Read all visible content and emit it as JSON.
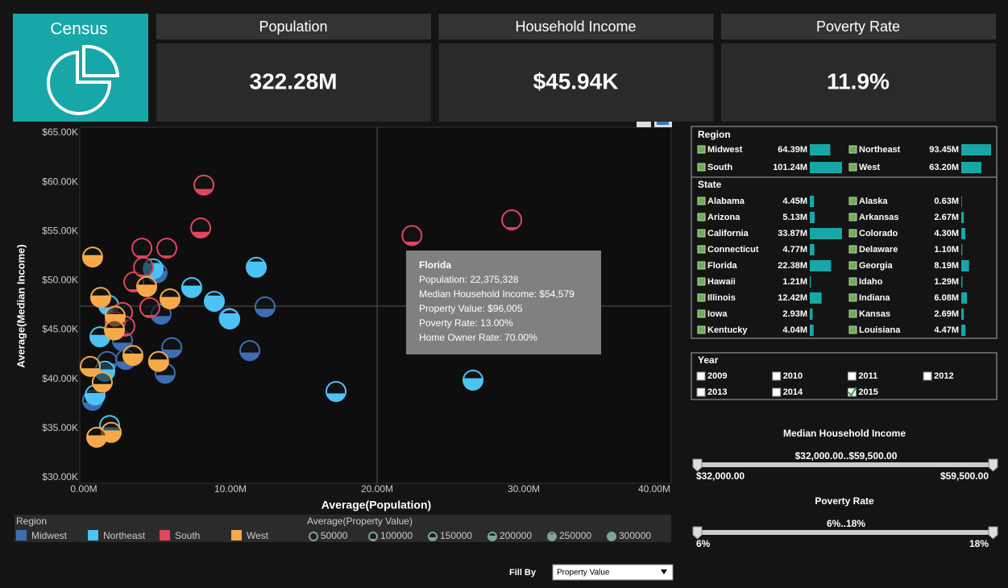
{
  "header": {
    "logo": "Census"
  },
  "kpis": [
    {
      "title": "Population",
      "value": "322.28M"
    },
    {
      "title": "Household Income",
      "value": "$45.94K"
    },
    {
      "title": "Poverty Rate",
      "value": "11.9%"
    }
  ],
  "chart_data": {
    "type": "scatter",
    "x_label": "Average(Population)",
    "y_label": "Average(Median Income)",
    "xlim": [
      0,
      40000000
    ],
    "ylim": [
      30000,
      65000
    ],
    "xticks": [
      {
        "value": 0,
        "label": "0.00M"
      },
      {
        "value": 10000000,
        "label": "10.00M"
      },
      {
        "value": 20000000,
        "label": "20.00M"
      },
      {
        "value": 30000000,
        "label": "30.00M"
      },
      {
        "value": 40000000,
        "label": "40.00M"
      }
    ],
    "yticks": [
      {
        "value": 30000,
        "label": "$30.00K"
      },
      {
        "value": 35000,
        "label": "$35.00K"
      },
      {
        "value": 40000,
        "label": "$40.00K"
      },
      {
        "value": 45000,
        "label": "$45.00K"
      },
      {
        "value": 50000,
        "label": "$50.00K"
      },
      {
        "value": 55000,
        "label": "$55.00K"
      },
      {
        "value": 60000,
        "label": "$60.00K"
      },
      {
        "value": 65000,
        "label": "$65.00K"
      }
    ],
    "legend_title": "Region",
    "fill_title": "Average(Property Value)",
    "fill_legend": [
      50000,
      100000,
      150000,
      200000,
      250000,
      300000
    ],
    "series": [
      {
        "name": "Midwest",
        "color": "#3d6eb4",
        "x": [
          12360000,
          11320000,
          6000000,
          5550000,
          5270000,
          5000000,
          2640000,
          1600000,
          2860000,
          600000,
          9900000
        ],
        "values": [
          47340,
          42900,
          43200,
          40600,
          46600,
          50800,
          43900,
          41800,
          42000,
          37850,
          46200
        ],
        "fill_values": [
          150000,
          150000,
          150000,
          150000,
          150000,
          200000,
          150000,
          150000,
          150000,
          150000,
          150000
        ]
      },
      {
        "name": "Northeast",
        "color": "#4cc3f5",
        "x": [
          11760000,
          7360000,
          8900000,
          4730000,
          9950000,
          26540000,
          17200000,
          1700000,
          1100000,
          1430000,
          770000,
          1760000
        ],
        "values": [
          51350,
          49300,
          47900,
          51200,
          46100,
          39900,
          38750,
          47500,
          44300,
          40800,
          38400,
          35300
        ],
        "fill_values": [
          250000,
          200000,
          250000,
          250000,
          250000,
          200000,
          150000,
          150000,
          200000,
          200000,
          200000,
          150000
        ]
      },
      {
        "name": "South",
        "color": "#e0465e",
        "x": [
          8190000,
          7970000,
          22375328,
          29180000,
          3960000,
          5660000,
          3410000,
          4070000,
          4500000,
          2640000,
          2800000,
          2140000
        ],
        "values": [
          59700,
          55350,
          54579,
          56170,
          53300,
          53300,
          49870,
          51350,
          47260,
          46770,
          45380,
          45800
        ],
        "fill_values": [
          125000,
          125000,
          96005,
          80000,
          80000,
          80000,
          80000,
          80000,
          80000,
          80000,
          80000,
          80000
        ]
      },
      {
        "name": "West",
        "color": "#f7a94a",
        "x": [
          600000,
          1150000,
          4290000,
          5880000,
          2140000,
          2090000,
          3350000,
          5100000,
          440000,
          1260000,
          1870000,
          880000
        ],
        "values": [
          52400,
          48300,
          49400,
          48150,
          46400,
          45000,
          42400,
          41800,
          41300,
          39700,
          34600,
          34100
        ],
        "fill_values": [
          200000,
          200000,
          200000,
          200000,
          200000,
          200000,
          200000,
          200000,
          150000,
          150000,
          200000,
          200000
        ]
      }
    ],
    "tooltip": {
      "title": "Florida",
      "lines": [
        "Population: 22,375,328",
        "Median Household Income: $54,579",
        "Property Value: $96,005",
        "Poverty Rate: 13.00%",
        "Home Owner Rate: 70.00%"
      ]
    }
  },
  "filters": {
    "region": {
      "title": "Region",
      "items": [
        {
          "name": "Midwest",
          "value": 64390000,
          "label": "64.39M"
        },
        {
          "name": "Northeast",
          "value": 93450000,
          "label": "93.45M"
        },
        {
          "name": "South",
          "value": 101240000,
          "label": "101.24M"
        },
        {
          "name": "West",
          "value": 63200000,
          "label": "63.20M"
        }
      ]
    },
    "state": {
      "title": "State",
      "items": [
        {
          "name": "Alabama",
          "value": 4450000,
          "label": "4.45M"
        },
        {
          "name": "Alaska",
          "value": 630000,
          "label": "0.63M"
        },
        {
          "name": "Arizona",
          "value": 5130000,
          "label": "5.13M"
        },
        {
          "name": "Arkansas",
          "value": 2670000,
          "label": "2.67M"
        },
        {
          "name": "California",
          "value": 33870000,
          "label": "33.87M"
        },
        {
          "name": "Colorado",
          "value": 4300000,
          "label": "4.30M"
        },
        {
          "name": "Connecticut",
          "value": 4770000,
          "label": "4.77M"
        },
        {
          "name": "Delaware",
          "value": 1100000,
          "label": "1.10M"
        },
        {
          "name": "Florida",
          "value": 22380000,
          "label": "22.38M"
        },
        {
          "name": "Georgia",
          "value": 8190000,
          "label": "8.19M"
        },
        {
          "name": "Hawaii",
          "value": 1210000,
          "label": "1.21M"
        },
        {
          "name": "Idaho",
          "value": 1290000,
          "label": "1.29M"
        },
        {
          "name": "Illinois",
          "value": 12420000,
          "label": "12.42M"
        },
        {
          "name": "Indiana",
          "value": 6080000,
          "label": "6.08M"
        },
        {
          "name": "Iowa",
          "value": 2930000,
          "label": "2.93M"
        },
        {
          "name": "Kansas",
          "value": 2690000,
          "label": "2.69M"
        },
        {
          "name": "Kentucky",
          "value": 4040000,
          "label": "4.04M"
        },
        {
          "name": "Louisiana",
          "value": 4470000,
          "label": "4.47M"
        }
      ]
    },
    "year": {
      "title": "Year",
      "options": [
        "2009",
        "2010",
        "2011",
        "2012",
        "2013",
        "2014",
        "2015"
      ],
      "checked": [
        false,
        false,
        false,
        false,
        false,
        false,
        true
      ]
    }
  },
  "sliders": [
    {
      "title": "Median Household Income",
      "range": "$32,000.00..$59,500.00",
      "min": "$32,000.00",
      "max": "$59,500.00"
    },
    {
      "title": "Poverty Rate",
      "range": "6%..18%",
      "min": "6%",
      "max": "18%"
    }
  ],
  "fill_by": {
    "label": "Fill By",
    "selected": "Property Value"
  }
}
